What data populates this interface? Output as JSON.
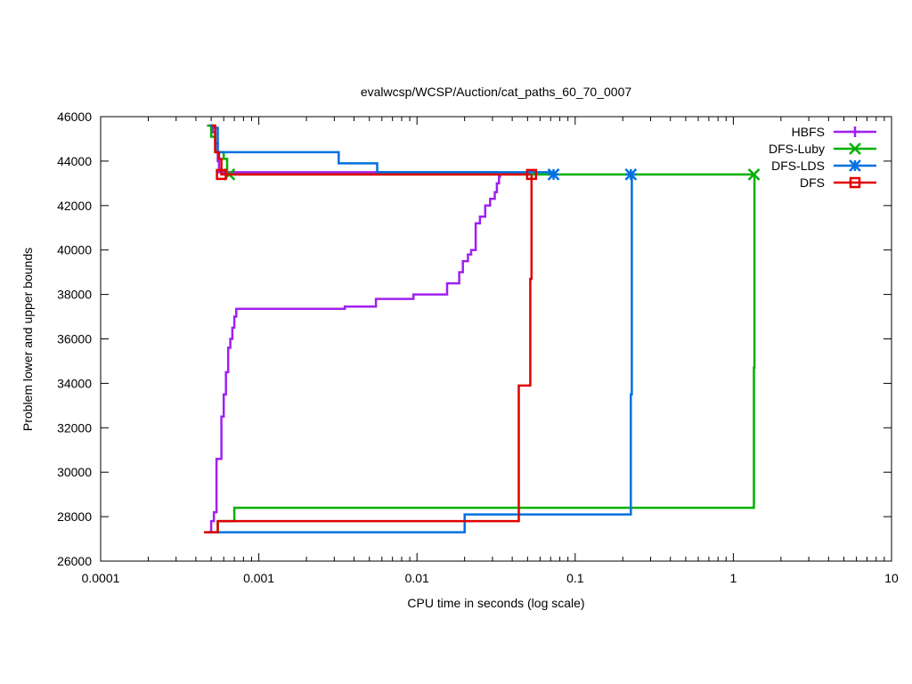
{
  "chart_data": {
    "type": "line",
    "title": "evalwcsp/WCSP/Auction/cat_paths_60_70_0007",
    "xlabel": "CPU time in seconds (log scale)",
    "ylabel": "Problem lower and upper bounds",
    "xscale": "log",
    "xlim": [
      0.0001,
      10
    ],
    "ylim": [
      26000,
      46000
    ],
    "xticks": [
      0.0001,
      0.001,
      0.01,
      0.1,
      1,
      10
    ],
    "xtick_labels": [
      "0.0001",
      "0.001",
      "0.01",
      "0.1",
      "1",
      "10"
    ],
    "yticks": [
      26000,
      28000,
      30000,
      32000,
      34000,
      36000,
      38000,
      40000,
      42000,
      44000,
      46000
    ],
    "ytick_labels": [
      "26000",
      "28000",
      "30000",
      "32000",
      "34000",
      "36000",
      "38000",
      "40000",
      "42000",
      "44000",
      "46000"
    ],
    "grid": false,
    "legend_position": "top-right",
    "series": [
      {
        "name": "HBFS",
        "color": "#a020f0",
        "marker": "plus",
        "upper": [
          [
            0.00048,
            45600
          ],
          [
            0.00051,
            45300
          ],
          [
            0.00053,
            44800
          ],
          [
            0.00055,
            44000
          ],
          [
            0.00056,
            43500
          ],
          [
            0.033,
            43500
          ]
        ],
        "lower": [
          [
            0.00048,
            27300
          ],
          [
            0.0005,
            27800
          ],
          [
            0.00052,
            28200
          ],
          [
            0.00054,
            30600
          ],
          [
            0.00058,
            32500
          ],
          [
            0.0006,
            33500
          ],
          [
            0.00062,
            34500
          ],
          [
            0.00064,
            35600
          ],
          [
            0.00066,
            36000
          ],
          [
            0.00068,
            36500
          ],
          [
            0.0007,
            37000
          ],
          [
            0.00072,
            37350
          ],
          [
            0.0035,
            37450
          ],
          [
            0.0055,
            37800
          ],
          [
            0.0095,
            38000
          ],
          [
            0.0155,
            38500
          ],
          [
            0.0185,
            39000
          ],
          [
            0.0195,
            39500
          ],
          [
            0.021,
            39800
          ],
          [
            0.022,
            40000
          ],
          [
            0.0235,
            41200
          ],
          [
            0.025,
            41500
          ],
          [
            0.027,
            42000
          ],
          [
            0.029,
            42300
          ],
          [
            0.031,
            42600
          ],
          [
            0.032,
            43000
          ],
          [
            0.033,
            43300
          ],
          [
            0.0335,
            43500
          ]
        ]
      },
      {
        "name": "DFS-Luby",
        "color": "#00b000",
        "marker": "cross",
        "upper": [
          [
            0.00047,
            45600
          ],
          [
            0.0005,
            45100
          ],
          [
            0.00053,
            44400
          ],
          [
            0.0006,
            44100
          ],
          [
            0.00063,
            43400
          ],
          [
            1.35,
            43400
          ]
        ],
        "lower": [
          [
            0.00047,
            27300
          ],
          [
            0.00055,
            27800
          ],
          [
            0.0007,
            28400
          ],
          [
            1.34,
            28400
          ],
          [
            1.35,
            34700
          ],
          [
            1.36,
            43400
          ]
        ],
        "marker_points": [
          [
            0.00065,
            43400
          ],
          [
            1.35,
            43400
          ]
        ]
      },
      {
        "name": "DFS-LDS",
        "color": "#0070e0",
        "marker": "star",
        "upper": [
          [
            0.00049,
            45600
          ],
          [
            0.00052,
            45500
          ],
          [
            0.00055,
            44400
          ],
          [
            0.0032,
            43900
          ],
          [
            0.0056,
            43500
          ],
          [
            0.073,
            43500
          ]
        ],
        "lower": [
          [
            0.00049,
            27300
          ],
          [
            0.02,
            28100
          ],
          [
            0.22,
            28100
          ],
          [
            0.225,
            33500
          ],
          [
            0.228,
            43400
          ]
        ],
        "marker_points": [
          [
            0.073,
            43400
          ],
          [
            0.225,
            43400
          ]
        ]
      },
      {
        "name": "DFS",
        "color": "#e00000",
        "marker": "square",
        "upper": [
          [
            0.0005,
            45600
          ],
          [
            0.00053,
            44400
          ],
          [
            0.00056,
            44100
          ],
          [
            0.00058,
            43400
          ],
          [
            0.052,
            43400
          ]
        ],
        "lower": [
          [
            0.00045,
            27300
          ],
          [
            0.00055,
            27800
          ],
          [
            0.043,
            27800
          ],
          [
            0.044,
            33900
          ],
          [
            0.052,
            38700
          ],
          [
            0.053,
            43400
          ]
        ],
        "marker_points": [
          [
            0.00058,
            43400
          ],
          [
            0.053,
            43400
          ]
        ]
      }
    ]
  }
}
